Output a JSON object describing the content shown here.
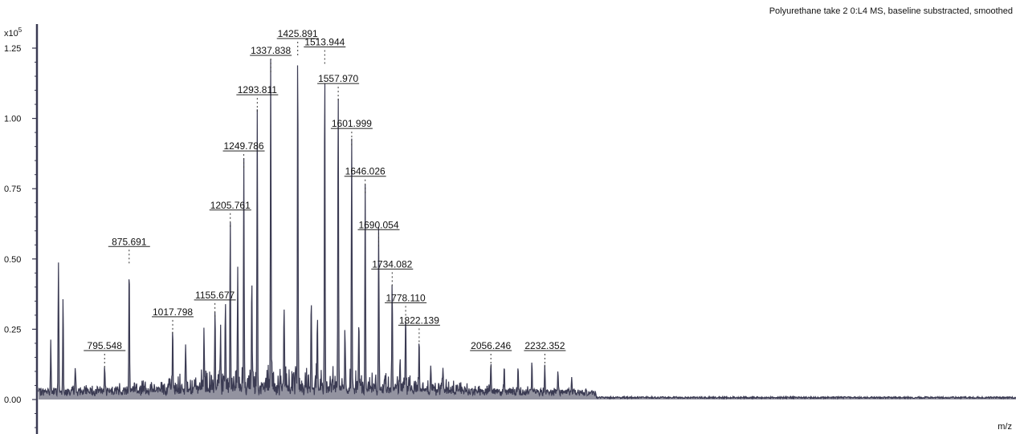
{
  "chart_data": {
    "type": "line",
    "title": "Polyurethane take 2 0:L4 MS, baseline substracted, smoothed",
    "xlabel": "m/z",
    "ylabel": "",
    "y_multiplier_base": "x10",
    "y_multiplier_exp": "5",
    "ylim": [
      0,
      1.3
    ],
    "y_ticks": [
      {
        "value": 0.0,
        "label": "0.00"
      },
      {
        "value": 0.25,
        "label": "0.25"
      },
      {
        "value": 0.5,
        "label": "0.50"
      },
      {
        "value": 0.75,
        "label": "0.75"
      },
      {
        "value": 1.0,
        "label": "1.00"
      },
      {
        "value": 1.25,
        "label": "1.25"
      }
    ],
    "xlim": [
      580,
      3770
    ],
    "series_color": "#3a3a52",
    "labeled_peaks": [
      {
        "mz": 795.548,
        "label": "795.548",
        "intensity": 0.1
      },
      {
        "mz": 875.691,
        "label": "875.691",
        "intensity": 0.47
      },
      {
        "mz": 1017.798,
        "label": "1017.798",
        "intensity": 0.22
      },
      {
        "mz": 1155.677,
        "label": "1155.677",
        "intensity": 0.28
      },
      {
        "mz": 1205.761,
        "label": "1205.761",
        "intensity": 0.6
      },
      {
        "mz": 1249.786,
        "label": "1249.786",
        "intensity": 0.81
      },
      {
        "mz": 1293.811,
        "label": "1293.811",
        "intensity": 1.01
      },
      {
        "mz": 1337.838,
        "label": "1337.838",
        "intensity": 1.15
      },
      {
        "mz": 1425.891,
        "label": "1425.891",
        "intensity": 1.21
      },
      {
        "mz": 1513.944,
        "label": "1513.944",
        "intensity": 1.18
      },
      {
        "mz": 1557.97,
        "label": "1557.970",
        "intensity": 1.05
      },
      {
        "mz": 1601.999,
        "label": "1601.999",
        "intensity": 0.89
      },
      {
        "mz": 1646.026,
        "label": "1646.026",
        "intensity": 0.72
      },
      {
        "mz": 1690.054,
        "label": "1690.054",
        "intensity": 0.53
      },
      {
        "mz": 1734.082,
        "label": "1734.082",
        "intensity": 0.39
      },
      {
        "mz": 1778.11,
        "label": "1778.110",
        "intensity": 0.27
      },
      {
        "mz": 1822.139,
        "label": "1822.139",
        "intensity": 0.19
      },
      {
        "mz": 2056.246,
        "label": "2056.246",
        "intensity": 0.1
      },
      {
        "mz": 2232.352,
        "label": "2232.352",
        "intensity": 0.1
      }
    ],
    "unlabeled_peaks": [
      {
        "mz": 620,
        "intensity": 0.18
      },
      {
        "mz": 645,
        "intensity": 0.47
      },
      {
        "mz": 660,
        "intensity": 0.35
      },
      {
        "mz": 700,
        "intensity": 0.1
      },
      {
        "mz": 1060,
        "intensity": 0.18
      },
      {
        "mz": 1120,
        "intensity": 0.2
      },
      {
        "mz": 1174,
        "intensity": 0.22
      },
      {
        "mz": 1190,
        "intensity": 0.31
      },
      {
        "mz": 1230,
        "intensity": 0.38
      },
      {
        "mz": 1276,
        "intensity": 0.41
      },
      {
        "mz": 1381,
        "intensity": 0.28
      },
      {
        "mz": 1470,
        "intensity": 0.33
      },
      {
        "mz": 1490,
        "intensity": 0.25
      },
      {
        "mz": 1580,
        "intensity": 0.22
      },
      {
        "mz": 1625,
        "intensity": 0.22
      },
      {
        "mz": 1760,
        "intensity": 0.12
      },
      {
        "mz": 1860,
        "intensity": 0.1
      },
      {
        "mz": 1900,
        "intensity": 0.08
      },
      {
        "mz": 2100,
        "intensity": 0.1
      },
      {
        "mz": 2145,
        "intensity": 0.1
      },
      {
        "mz": 2190,
        "intensity": 0.1
      },
      {
        "mz": 2275,
        "intensity": 0.08
      },
      {
        "mz": 2320,
        "intensity": 0.05
      }
    ]
  }
}
